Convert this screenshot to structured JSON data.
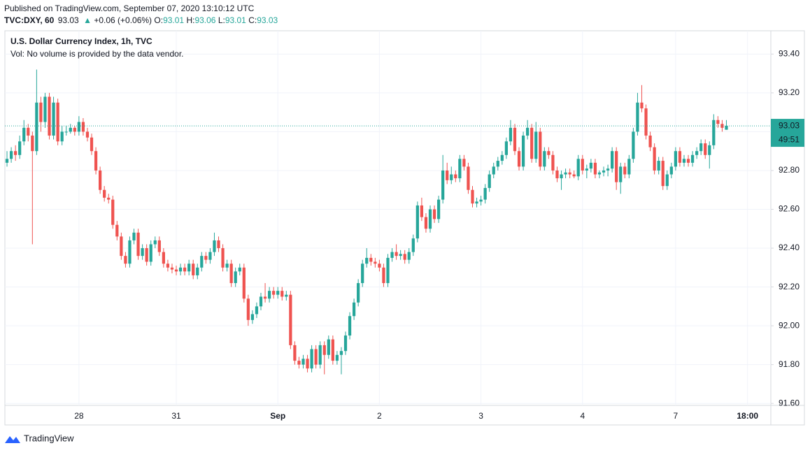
{
  "header": {
    "published": "Published on TradingView.com, September 07, 2020 13:10:12 UTC",
    "symbol": "TVC:DXY, 60",
    "last": "93.03",
    "change": "+0.06 (+0.06%)",
    "o_label": "O:",
    "o": "93.01",
    "h_label": "H:",
    "h": "93.06",
    "l_label": "L:",
    "l": "93.01",
    "c_label": "C:",
    "c": "93.03"
  },
  "footer": {
    "brand": "TradingView"
  },
  "chart_data": {
    "type": "candlestick",
    "title": "U.S. Dollar Currency Index, 1h, TVC",
    "subtitle": "Vol: No volume is provided by the data vendor.",
    "up_color": "#26a69a",
    "down_color": "#ef5350",
    "grid": true,
    "price_label": "93.03",
    "countdown": "49:51",
    "ylim": [
      91.59,
      93.52
    ],
    "yticks": [
      {
        "value": 91.6,
        "label": "91.60"
      },
      {
        "value": 91.8,
        "label": "91.80"
      },
      {
        "value": 92,
        "label": "92.00"
      },
      {
        "value": 92.2,
        "label": "92.20"
      },
      {
        "value": 92.4,
        "label": "92.40"
      },
      {
        "value": 92.6,
        "label": "92.60"
      },
      {
        "value": 92.8,
        "label": "92.80"
      },
      {
        "value": 93,
        "label": "93.00"
      },
      {
        "value": 93.2,
        "label": "93.20"
      },
      {
        "value": 93.4,
        "label": "93.40"
      }
    ],
    "xlim": [
      -0.5,
      180.5
    ],
    "xticks": [
      {
        "value": 17,
        "label": "28"
      },
      {
        "value": 40,
        "label": "31"
      },
      {
        "value": 64,
        "label": "Sep"
      },
      {
        "value": 88,
        "label": "2"
      },
      {
        "value": 112,
        "label": "3"
      },
      {
        "value": 136,
        "label": "4"
      },
      {
        "value": 158,
        "label": "7"
      },
      {
        "value": 175,
        "label": "18:00"
      }
    ],
    "candles": [
      [
        92.84,
        92.9,
        92.82,
        92.86
      ],
      [
        92.86,
        92.92,
        92.84,
        92.9
      ],
      [
        92.9,
        92.93,
        92.85,
        92.88
      ],
      [
        92.88,
        92.98,
        92.86,
        92.95
      ],
      [
        92.95,
        93.06,
        92.93,
        93.02
      ],
      [
        93.02,
        93.04,
        92.95,
        92.98
      ],
      [
        92.98,
        93.0,
        92.42,
        92.9
      ],
      [
        92.9,
        93.32,
        92.88,
        93.15
      ],
      [
        93.15,
        93.18,
        93.0,
        93.05
      ],
      [
        93.05,
        93.2,
        93.02,
        93.18
      ],
      [
        93.18,
        93.2,
        92.96,
        92.98
      ],
      [
        92.98,
        93.18,
        92.96,
        93.15
      ],
      [
        93.15,
        93.17,
        92.93,
        92.95
      ],
      [
        92.95,
        93.03,
        92.93,
        93.0
      ],
      [
        93.0,
        93.03,
        92.98,
        93.0
      ],
      [
        93.0,
        93.04,
        92.99,
        93.02
      ],
      [
        93.02,
        93.03,
        92.98,
        93.0
      ],
      [
        93.0,
        93.08,
        92.98,
        93.05
      ],
      [
        93.05,
        93.07,
        92.98,
        93.0
      ],
      [
        93.0,
        93.02,
        92.95,
        92.97
      ],
      [
        92.97,
        92.99,
        92.88,
        92.9
      ],
      [
        92.9,
        92.92,
        92.78,
        92.8
      ],
      [
        92.8,
        92.82,
        92.68,
        92.7
      ],
      [
        92.7,
        92.72,
        92.64,
        92.66
      ],
      [
        92.66,
        92.68,
        92.63,
        92.65
      ],
      [
        92.65,
        92.67,
        92.5,
        92.52
      ],
      [
        92.52,
        92.54,
        92.44,
        92.46
      ],
      [
        92.46,
        92.48,
        92.34,
        92.36
      ],
      [
        92.36,
        92.38,
        92.3,
        92.32
      ],
      [
        92.32,
        92.46,
        92.3,
        92.44
      ],
      [
        92.44,
        92.5,
        92.42,
        92.48
      ],
      [
        92.48,
        92.5,
        92.34,
        92.36
      ],
      [
        92.36,
        92.42,
        92.34,
        92.4
      ],
      [
        92.4,
        92.42,
        92.31,
        92.33
      ],
      [
        92.33,
        92.44,
        92.31,
        92.42
      ],
      [
        92.42,
        92.46,
        92.4,
        92.44
      ],
      [
        92.44,
        92.46,
        92.36,
        92.38
      ],
      [
        92.38,
        92.4,
        92.3,
        92.32
      ],
      [
        92.32,
        92.34,
        92.28,
        92.3
      ],
      [
        92.3,
        92.32,
        92.27,
        92.29
      ],
      [
        92.29,
        92.31,
        92.26,
        92.28
      ],
      [
        92.28,
        92.32,
        92.26,
        92.3
      ],
      [
        92.3,
        92.32,
        92.26,
        92.28
      ],
      [
        92.28,
        92.34,
        92.26,
        92.32
      ],
      [
        92.32,
        92.34,
        92.24,
        92.26
      ],
      [
        92.26,
        92.32,
        92.24,
        92.3
      ],
      [
        92.3,
        92.38,
        92.28,
        92.36
      ],
      [
        92.36,
        92.38,
        92.32,
        92.34
      ],
      [
        92.34,
        92.4,
        92.32,
        92.38
      ],
      [
        92.38,
        92.48,
        92.36,
        92.44
      ],
      [
        92.44,
        92.46,
        92.38,
        92.4
      ],
      [
        92.4,
        92.42,
        92.28,
        92.3
      ],
      [
        92.3,
        92.34,
        92.28,
        92.32
      ],
      [
        92.32,
        92.34,
        92.2,
        92.22
      ],
      [
        92.22,
        92.3,
        92.2,
        92.28
      ],
      [
        92.28,
        92.32,
        92.26,
        92.3
      ],
      [
        92.3,
        92.32,
        92.12,
        92.14
      ],
      [
        92.14,
        92.16,
        92.0,
        92.03
      ],
      [
        92.03,
        92.08,
        92.01,
        92.06
      ],
      [
        92.06,
        92.12,
        92.04,
        92.1
      ],
      [
        92.1,
        92.17,
        92.08,
        92.15
      ],
      [
        92.15,
        92.22,
        92.12,
        92.14
      ],
      [
        92.14,
        92.2,
        92.12,
        92.18
      ],
      [
        92.18,
        92.2,
        92.14,
        92.16
      ],
      [
        92.16,
        92.2,
        92.14,
        92.18
      ],
      [
        92.18,
        92.2,
        92.13,
        92.15
      ],
      [
        92.15,
        92.18,
        92.13,
        92.16
      ],
      [
        92.16,
        92.18,
        91.88,
        91.9
      ],
      [
        91.9,
        91.92,
        91.8,
        91.82
      ],
      [
        91.82,
        91.84,
        91.78,
        91.8
      ],
      [
        91.8,
        91.85,
        91.78,
        91.83
      ],
      [
        91.83,
        91.85,
        91.76,
        91.78
      ],
      [
        91.78,
        91.9,
        91.76,
        91.88
      ],
      [
        91.88,
        91.9,
        91.78,
        91.8
      ],
      [
        91.8,
        91.92,
        91.78,
        91.9
      ],
      [
        91.9,
        91.92,
        91.75,
        91.85
      ],
      [
        91.85,
        91.95,
        91.83,
        91.93
      ],
      [
        91.93,
        91.95,
        91.8,
        91.82
      ],
      [
        91.82,
        91.87,
        91.8,
        91.85
      ],
      [
        91.85,
        91.89,
        91.75,
        91.87
      ],
      [
        91.87,
        91.97,
        91.85,
        91.95
      ],
      [
        91.95,
        92.07,
        91.93,
        92.05
      ],
      [
        92.05,
        92.14,
        92.03,
        92.12
      ],
      [
        92.12,
        92.24,
        92.1,
        92.22
      ],
      [
        92.22,
        92.34,
        92.2,
        92.32
      ],
      [
        92.32,
        92.4,
        92.3,
        92.35
      ],
      [
        92.35,
        92.37,
        92.31,
        92.33
      ],
      [
        92.33,
        92.35,
        92.3,
        92.32
      ],
      [
        92.32,
        92.34,
        92.28,
        92.3
      ],
      [
        92.3,
        92.32,
        92.2,
        92.22
      ],
      [
        92.22,
        92.37,
        92.2,
        92.35
      ],
      [
        92.35,
        92.4,
        92.33,
        92.38
      ],
      [
        92.38,
        92.42,
        92.34,
        92.36
      ],
      [
        92.36,
        92.39,
        92.34,
        92.37
      ],
      [
        92.37,
        92.39,
        92.32,
        92.34
      ],
      [
        92.34,
        92.4,
        92.32,
        92.38
      ],
      [
        92.38,
        92.47,
        92.36,
        92.45
      ],
      [
        92.45,
        92.64,
        92.43,
        92.62
      ],
      [
        92.62,
        92.66,
        92.54,
        92.56
      ],
      [
        92.56,
        92.58,
        92.48,
        92.5
      ],
      [
        92.5,
        92.62,
        92.48,
        92.6
      ],
      [
        92.6,
        92.62,
        92.53,
        92.55
      ],
      [
        92.55,
        92.67,
        92.53,
        92.65
      ],
      [
        92.65,
        92.88,
        92.63,
        92.8
      ],
      [
        92.8,
        92.84,
        92.73,
        92.75
      ],
      [
        92.75,
        92.82,
        92.73,
        92.78
      ],
      [
        92.78,
        92.8,
        92.74,
        92.76
      ],
      [
        92.76,
        92.88,
        92.74,
        92.86
      ],
      [
        92.86,
        92.88,
        92.8,
        92.82
      ],
      [
        92.82,
        92.84,
        92.68,
        92.7
      ],
      [
        92.7,
        92.72,
        92.61,
        92.63
      ],
      [
        92.63,
        92.66,
        92.61,
        92.64
      ],
      [
        92.64,
        92.67,
        92.62,
        92.65
      ],
      [
        92.65,
        92.73,
        92.63,
        92.71
      ],
      [
        92.71,
        92.8,
        92.69,
        92.78
      ],
      [
        92.78,
        92.84,
        92.76,
        92.82
      ],
      [
        92.82,
        92.87,
        92.8,
        92.85
      ],
      [
        92.85,
        92.9,
        92.83,
        92.88
      ],
      [
        92.88,
        92.97,
        92.86,
        92.95
      ],
      [
        92.95,
        93.06,
        92.93,
        93.02
      ],
      [
        93.02,
        93.04,
        92.88,
        92.9
      ],
      [
        92.9,
        92.92,
        92.8,
        92.82
      ],
      [
        92.82,
        93.0,
        92.8,
        92.98
      ],
      [
        92.98,
        93.06,
        92.96,
        93.02
      ],
      [
        93.02,
        93.04,
        92.84,
        92.86
      ],
      [
        92.86,
        93.05,
        92.84,
        93.0
      ],
      [
        93.0,
        93.02,
        92.8,
        92.82
      ],
      [
        92.82,
        92.92,
        92.8,
        92.9
      ],
      [
        92.9,
        92.92,
        92.86,
        92.88
      ],
      [
        92.88,
        92.9,
        92.78,
        92.8
      ],
      [
        92.8,
        92.82,
        92.74,
        92.76
      ],
      [
        92.76,
        92.8,
        92.7,
        92.78
      ],
      [
        92.78,
        92.81,
        92.76,
        92.79
      ],
      [
        92.79,
        92.81,
        92.76,
        92.78
      ],
      [
        92.78,
        92.8,
        92.76,
        92.77
      ],
      [
        92.77,
        92.88,
        92.75,
        92.86
      ],
      [
        92.86,
        92.88,
        92.78,
        92.8
      ],
      [
        92.8,
        92.83,
        92.76,
        92.81
      ],
      [
        92.81,
        92.86,
        92.79,
        92.84
      ],
      [
        92.84,
        92.86,
        92.76,
        92.78
      ],
      [
        92.78,
        92.8,
        92.76,
        92.79
      ],
      [
        92.79,
        92.82,
        92.77,
        92.8
      ],
      [
        92.8,
        92.83,
        92.77,
        92.81
      ],
      [
        92.81,
        92.92,
        92.79,
        92.9
      ],
      [
        92.9,
        92.92,
        92.7,
        92.74
      ],
      [
        92.74,
        92.84,
        92.68,
        92.82
      ],
      [
        92.82,
        92.84,
        92.76,
        92.78
      ],
      [
        92.78,
        92.88,
        92.76,
        92.86
      ],
      [
        92.86,
        93.02,
        92.84,
        93.0
      ],
      [
        93.0,
        93.2,
        92.98,
        93.15
      ],
      [
        93.15,
        93.24,
        93.1,
        93.12
      ],
      [
        93.12,
        93.14,
        92.96,
        92.98
      ],
      [
        92.98,
        93.0,
        92.9,
        92.92
      ],
      [
        92.92,
        92.94,
        92.78,
        92.8
      ],
      [
        92.8,
        92.87,
        92.78,
        92.85
      ],
      [
        92.85,
        92.87,
        92.7,
        92.72
      ],
      [
        92.72,
        92.8,
        92.7,
        92.78
      ],
      [
        92.78,
        92.84,
        92.76,
        92.82
      ],
      [
        92.82,
        92.92,
        92.8,
        92.9
      ],
      [
        92.9,
        92.92,
        92.82,
        92.84
      ],
      [
        92.84,
        92.88,
        92.82,
        92.86
      ],
      [
        92.86,
        92.88,
        92.82,
        92.84
      ],
      [
        92.84,
        92.9,
        92.82,
        92.88
      ],
      [
        92.88,
        92.92,
        92.86,
        92.9
      ],
      [
        92.9,
        92.96,
        92.88,
        92.94
      ],
      [
        92.94,
        92.96,
        92.86,
        92.88
      ],
      [
        92.88,
        92.95,
        92.81,
        92.93
      ],
      [
        92.93,
        93.09,
        92.91,
        93.06
      ],
      [
        93.06,
        93.08,
        93.02,
        93.04
      ],
      [
        93.04,
        93.06,
        93.0,
        93.02
      ],
      [
        93.01,
        93.06,
        93.01,
        93.03
      ]
    ]
  }
}
